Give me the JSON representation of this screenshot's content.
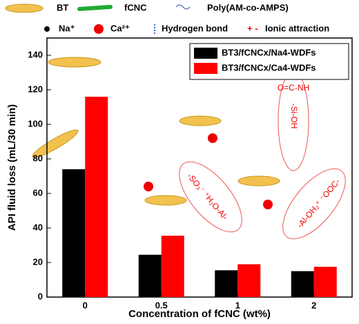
{
  "chart_data": {
    "type": "bar",
    "x_label": "Concentration of fCNC (wt%)",
    "y_label": "API fluid loss (mL/30 min)",
    "categories": [
      "0",
      "0.5",
      "1",
      "2"
    ],
    "series": [
      {
        "name": "BT3/fCNCx/Na4-WDFs",
        "color": "#000000",
        "values": [
          74,
          24.5,
          15.5,
          15
        ]
      },
      {
        "name": "BT3/fCNCx/Ca4-WDFs",
        "color": "#ff0000",
        "values": [
          116,
          35.5,
          19,
          17.5
        ]
      }
    ],
    "ylim": [
      0,
      150
    ],
    "yticks": [
      0,
      20,
      40,
      60,
      80,
      100,
      120,
      140
    ],
    "legend": "upper right",
    "key": [
      "BT",
      "fCNC",
      "Poly(AM-co-AMPS)",
      "Na⁺",
      "Ca²⁺",
      "Hydrogen bond",
      "Ionic attraction"
    ],
    "annotations": [
      "O=C-NH",
      "-Si-OH",
      "-SO₃⁻ ⁺H₂O-Al-",
      "-Al-OH₂⁺ ⁻OOC-"
    ]
  }
}
